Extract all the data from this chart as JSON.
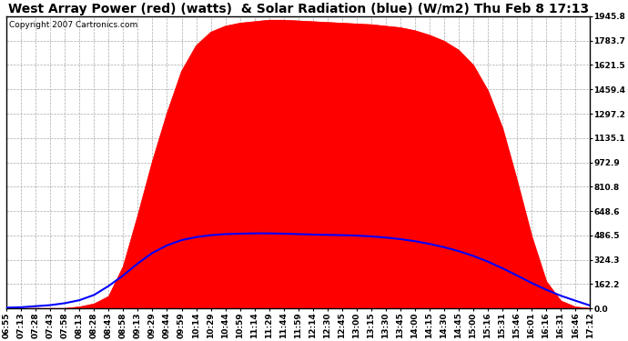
{
  "title": "West Array Power (red) (watts)  & Solar Radiation (blue) (W/m2) Thu Feb 8 17:13",
  "copyright": "Copyright 2007 Cartronics.com",
  "background_color": "#ffffff",
  "y_max": 1945.8,
  "y_min": 0.0,
  "y_ticks": [
    0.0,
    162.2,
    324.3,
    486.5,
    648.6,
    810.8,
    972.9,
    1135.1,
    1297.2,
    1459.4,
    1621.5,
    1783.7,
    1945.8
  ],
  "x_labels": [
    "06:55",
    "07:13",
    "07:28",
    "07:43",
    "07:58",
    "08:13",
    "08:28",
    "08:43",
    "08:58",
    "09:13",
    "09:29",
    "09:44",
    "09:59",
    "10:14",
    "10:29",
    "10:44",
    "10:59",
    "11:14",
    "11:29",
    "11:44",
    "11:59",
    "12:14",
    "12:30",
    "12:45",
    "13:00",
    "13:15",
    "13:30",
    "13:45",
    "14:00",
    "14:15",
    "14:30",
    "14:45",
    "15:00",
    "15:16",
    "15:31",
    "15:46",
    "16:01",
    "16:16",
    "16:31",
    "16:46",
    "17:12"
  ],
  "red_fill_color": "#ff0000",
  "blue_line_color": "#0000ff",
  "title_fontsize": 10,
  "axis_fontsize": 6.5,
  "copyright_fontsize": 6.5,
  "red_data": [
    0,
    0,
    0,
    0,
    0,
    10,
    30,
    80,
    280,
    620,
    980,
    1300,
    1580,
    1750,
    1840,
    1880,
    1900,
    1910,
    1920,
    1920,
    1915,
    1910,
    1905,
    1900,
    1895,
    1890,
    1880,
    1870,
    1850,
    1820,
    1780,
    1720,
    1620,
    1450,
    1200,
    850,
    480,
    180,
    50,
    10,
    0
  ],
  "blue_data": [
    5,
    8,
    15,
    22,
    35,
    55,
    90,
    150,
    220,
    300,
    370,
    420,
    455,
    475,
    488,
    495,
    498,
    500,
    500,
    498,
    495,
    492,
    490,
    488,
    485,
    480,
    472,
    462,
    448,
    430,
    408,
    382,
    350,
    312,
    268,
    220,
    170,
    125,
    85,
    52,
    20
  ]
}
